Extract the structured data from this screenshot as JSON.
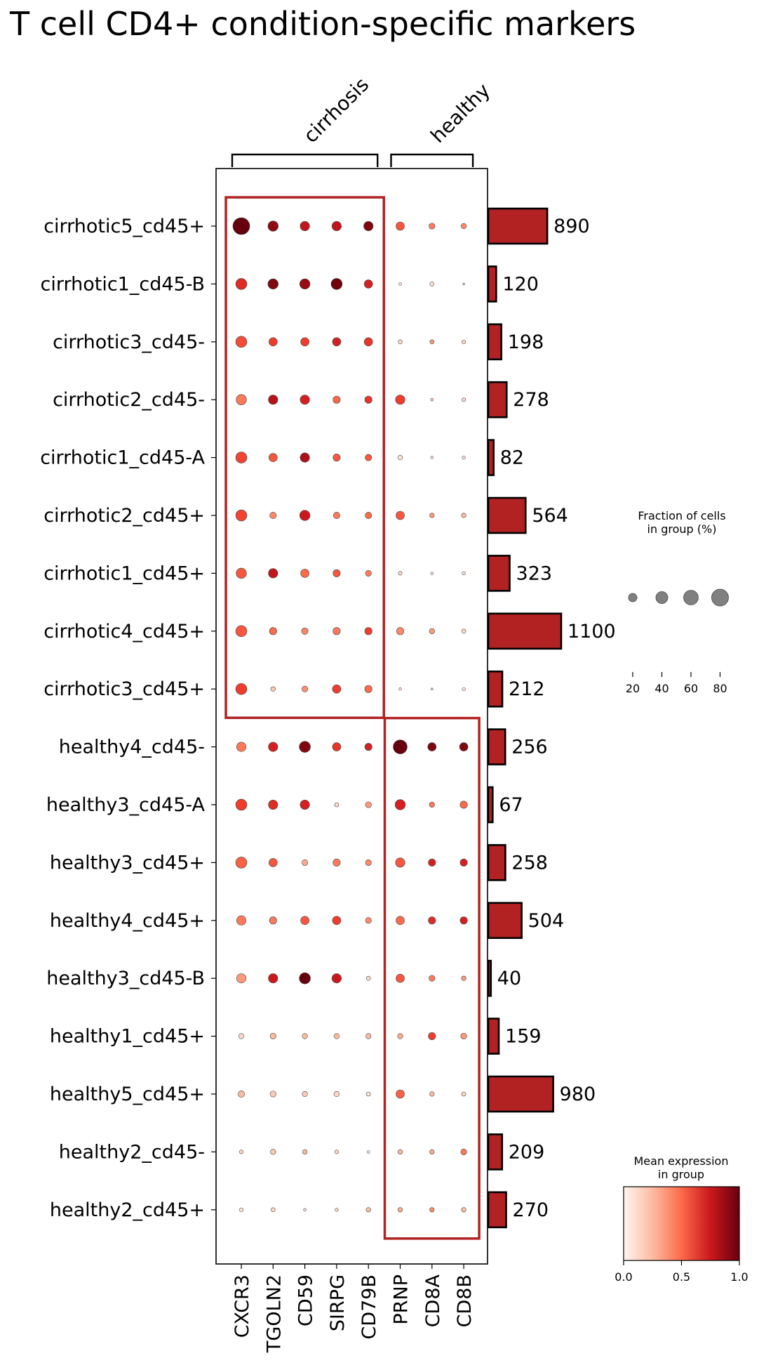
{
  "chart_data": {
    "type": "dotplot",
    "title": "T cell CD4+ condition-specific markers",
    "genes": [
      "CXCR3",
      "TGOLN2",
      "CD59",
      "SIRPG",
      "CD79B",
      "PRNP",
      "CD8A",
      "CD8B"
    ],
    "gene_groups": [
      {
        "label": "cirrhosis",
        "start": 0,
        "end": 4
      },
      {
        "label": "healthy",
        "start": 5,
        "end": 7
      }
    ],
    "groups": [
      "cirrhotic5_cd45+",
      "cirrhotic1_cd45-B",
      "cirrhotic3_cd45-",
      "cirrhotic2_cd45-",
      "cirrhotic1_cd45-A",
      "cirrhotic2_cd45+",
      "cirrhotic1_cd45+",
      "cirrhotic4_cd45+",
      "cirrhotic3_cd45+",
      "healthy4_cd45-",
      "healthy3_cd45-A",
      "healthy3_cd45+",
      "healthy4_cd45+",
      "healthy3_cd45-B",
      "healthy1_cd45+",
      "healthy5_cd45+",
      "healthy2_cd45-",
      "healthy2_cd45+"
    ],
    "cell_counts": [
      890,
      120,
      198,
      278,
      82,
      564,
      323,
      1100,
      212,
      256,
      67,
      258,
      504,
      40,
      159,
      980,
      209,
      270
    ],
    "fraction": [
      [
        80,
        30,
        25,
        25,
        25,
        20,
        10,
        8
      ],
      [
        35,
        30,
        30,
        35,
        20,
        2,
        5,
        1
      ],
      [
        35,
        20,
        20,
        20,
        20,
        5,
        5,
        4
      ],
      [
        30,
        25,
        25,
        15,
        15,
        25,
        2,
        4
      ],
      [
        35,
        20,
        25,
        15,
        12,
        6,
        2,
        3
      ],
      [
        35,
        12,
        30,
        12,
        12,
        20,
        6,
        6
      ],
      [
        30,
        25,
        20,
        15,
        10,
        4,
        2,
        3
      ],
      [
        35,
        15,
        12,
        15,
        15,
        15,
        8,
        5
      ],
      [
        35,
        6,
        10,
        20,
        15,
        2,
        1,
        3
      ],
      [
        25,
        25,
        35,
        20,
        15,
        55,
        20,
        20
      ],
      [
        35,
        25,
        25,
        5,
        10,
        30,
        8,
        15
      ],
      [
        35,
        20,
        10,
        15,
        10,
        25,
        15,
        15
      ],
      [
        25,
        15,
        20,
        20,
        10,
        20,
        15,
        15
      ],
      [
        25,
        25,
        35,
        25,
        5,
        20,
        10,
        6
      ],
      [
        8,
        10,
        8,
        8,
        8,
        8,
        15,
        10
      ],
      [
        12,
        10,
        8,
        8,
        5,
        20,
        6,
        5
      ],
      [
        4,
        8,
        6,
        4,
        2,
        6,
        6,
        10
      ],
      [
        4,
        5,
        2,
        3,
        6,
        6,
        6,
        6
      ]
    ],
    "expression": [
      [
        1.0,
        0.92,
        0.78,
        0.78,
        0.95,
        0.55,
        0.45,
        0.4
      ],
      [
        0.68,
        0.95,
        0.9,
        0.98,
        0.72,
        0.1,
        0.1,
        0.1
      ],
      [
        0.58,
        0.62,
        0.62,
        0.72,
        0.65,
        0.15,
        0.35,
        0.15
      ],
      [
        0.45,
        0.82,
        0.72,
        0.5,
        0.65,
        0.62,
        0.2,
        0.15
      ],
      [
        0.6,
        0.55,
        0.85,
        0.55,
        0.55,
        0.1,
        0.1,
        0.1
      ],
      [
        0.6,
        0.4,
        0.75,
        0.45,
        0.5,
        0.55,
        0.35,
        0.25
      ],
      [
        0.55,
        0.78,
        0.5,
        0.55,
        0.45,
        0.15,
        0.1,
        0.1
      ],
      [
        0.55,
        0.5,
        0.42,
        0.45,
        0.62,
        0.4,
        0.35,
        0.15
      ],
      [
        0.62,
        0.2,
        0.38,
        0.62,
        0.5,
        0.1,
        0.1,
        0.1
      ],
      [
        0.45,
        0.72,
        0.95,
        0.65,
        0.72,
        1.0,
        0.95,
        0.95
      ],
      [
        0.62,
        0.68,
        0.72,
        0.15,
        0.35,
        0.72,
        0.45,
        0.5
      ],
      [
        0.52,
        0.55,
        0.3,
        0.45,
        0.4,
        0.55,
        0.72,
        0.72
      ],
      [
        0.45,
        0.45,
        0.55,
        0.62,
        0.4,
        0.5,
        0.68,
        0.72
      ],
      [
        0.35,
        0.75,
        1.0,
        0.75,
        0.15,
        0.55,
        0.45,
        0.35
      ],
      [
        0.15,
        0.25,
        0.25,
        0.25,
        0.25,
        0.3,
        0.62,
        0.35
      ],
      [
        0.25,
        0.2,
        0.2,
        0.15,
        0.1,
        0.52,
        0.25,
        0.15
      ],
      [
        0.15,
        0.2,
        0.25,
        0.15,
        0.1,
        0.25,
        0.3,
        0.45
      ],
      [
        0.1,
        0.15,
        0.1,
        0.15,
        0.25,
        0.3,
        0.4,
        0.25
      ]
    ],
    "highlight_boxes": [
      {
        "first_gene": 0,
        "last_gene": 4,
        "first_group": 0,
        "last_group": 8
      },
      {
        "first_gene": 5,
        "last_gene": 7,
        "first_group": 9,
        "last_group": 17
      }
    ],
    "size_legend": {
      "title": "Fraction of cells\nin group (%)",
      "values": [
        20,
        40,
        60,
        80
      ]
    },
    "color_legend": {
      "title": "Mean expression\nin group",
      "range": [
        0.0,
        1.0
      ],
      "ticks": [
        "0.0",
        "0.5",
        "1.0"
      ]
    },
    "colors": {
      "bar_fill": "#b22222",
      "box": "#b22222",
      "colormap": "Reds"
    },
    "grid": false
  }
}
